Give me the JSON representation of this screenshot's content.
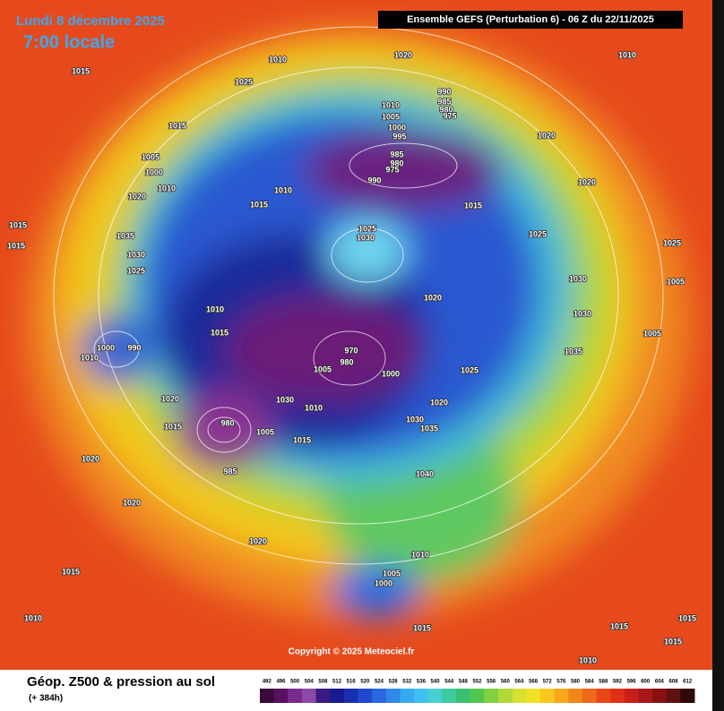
{
  "header": {
    "date": "Lundi 8 décembre 2025",
    "time": "7:00 locale",
    "run": "Ensemble GEFS  (Perturbation 6)  -  06 Z du 22/11/2025",
    "copyright": "Copyright © 2025 Meteociel.fr"
  },
  "footer": {
    "title": "Géop. Z500 & pression au sol",
    "lead": "(+ 384h)"
  },
  "colorbar": {
    "labels": [
      492,
      496,
      500,
      504,
      508,
      512,
      516,
      520,
      524,
      528,
      532,
      536,
      540,
      544,
      548,
      552,
      556,
      560,
      564,
      568,
      572,
      576,
      580,
      584,
      588,
      592,
      596,
      600,
      604,
      608,
      612
    ],
    "colors": [
      "#3a0a3a",
      "#5a1060",
      "#7a2a8a",
      "#8c48a8",
      "#3a1a80",
      "#1a1a90",
      "#1830b0",
      "#2048d0",
      "#2a66e0",
      "#3088e8",
      "#38a8f0",
      "#40c0f0",
      "#48d0d0",
      "#40c8a0",
      "#38c070",
      "#50c850",
      "#80d040",
      "#b0d838",
      "#d8e030",
      "#f0e028",
      "#f8c820",
      "#f8a818",
      "#f08818",
      "#f06818",
      "#e84818",
      "#e03018",
      "#c82018",
      "#a81818",
      "#881010",
      "#601010",
      "#300808"
    ]
  },
  "pressure_labels": [
    1015,
    1010,
    1020,
    1010,
    1025,
    990,
    985,
    980,
    975,
    1010,
    1005,
    1000,
    995,
    1015,
    1020,
    1005,
    1000,
    1010,
    1020,
    985,
    980,
    975,
    990,
    1010,
    1015,
    1015,
    1020,
    1015,
    1015,
    1035,
    1030,
    1025,
    1025,
    1030,
    1025,
    1025,
    1020,
    1030,
    1005,
    1010,
    1015,
    1030,
    1005,
    990,
    1000,
    1010,
    970,
    980,
    1005,
    1000,
    1035,
    1025,
    1020,
    1030,
    1010,
    1020,
    1015,
    980,
    1005,
    1015,
    1030,
    1035,
    985,
    1040,
    1020,
    1020,
    1020,
    1010,
    1015,
    1005,
    1000,
    1010,
    1015,
    1015,
    1015,
    1015,
    1010
  ]
}
